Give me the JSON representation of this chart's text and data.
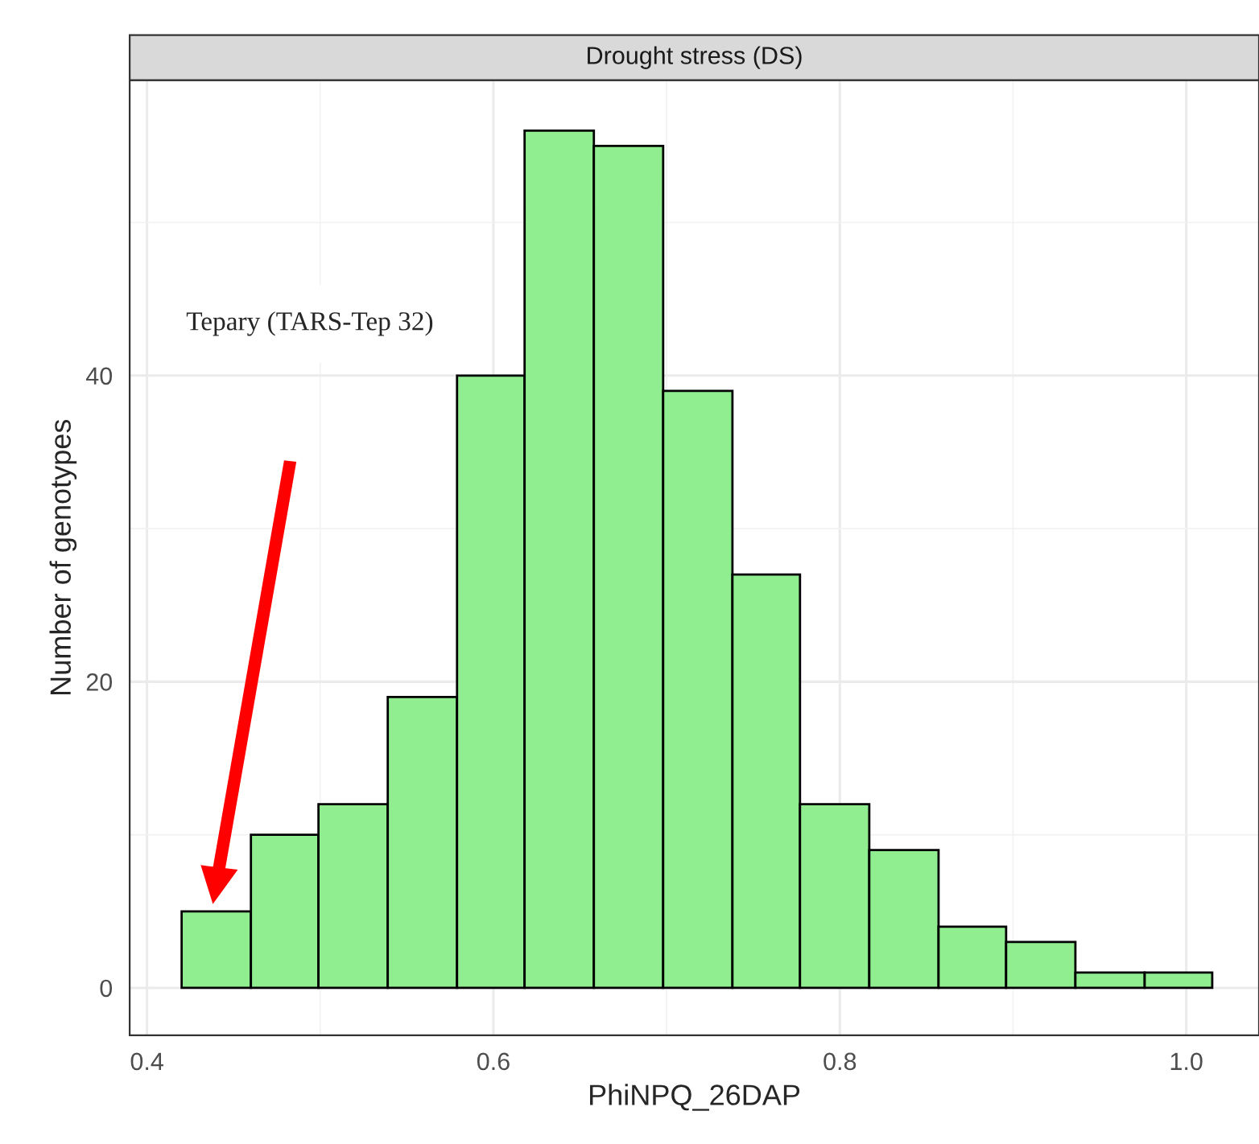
{
  "chart_data": {
    "type": "histogram",
    "title": "Drought stress (DS)",
    "xlabel": "PhiNPQ_26DAP",
    "ylabel": "Number of genotypes",
    "bins": [
      0.42,
      0.46,
      0.499,
      0.539,
      0.579,
      0.618,
      0.658,
      0.698,
      0.738,
      0.777,
      0.817,
      0.857,
      0.896,
      0.936,
      0.976,
      1.015
    ],
    "values": [
      5,
      10,
      12,
      19,
      40,
      56,
      55,
      39,
      27,
      12,
      9,
      4,
      3,
      1,
      1
    ],
    "color": "#90ee90",
    "xlim": [
      0.39,
      1.042
    ],
    "ylim": [
      -3.1,
      59.3
    ],
    "xticks": [
      0.4,
      0.6,
      0.8,
      {
        "value": 1.0,
        "label": "1.0"
      }
    ],
    "yticks": [
      0,
      20,
      40
    ],
    "grid": true,
    "annotations": [
      "Tepary (TARS-Tep 32)"
    ]
  }
}
